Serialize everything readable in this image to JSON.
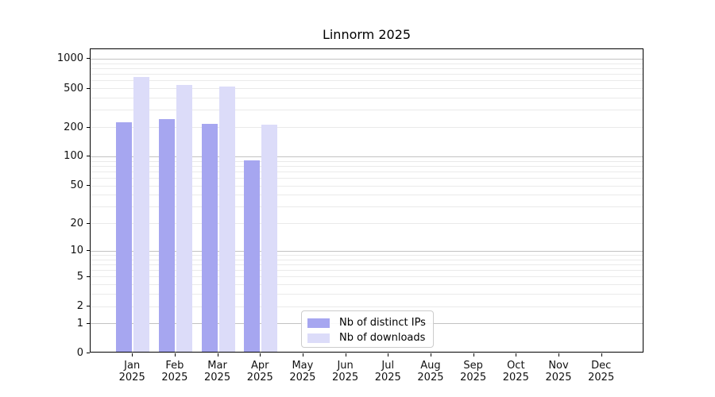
{
  "chart_data": {
    "type": "bar",
    "title": "Linnorm 2025",
    "categories": [
      "Jan",
      "Feb",
      "Mar",
      "Apr",
      "May",
      "Jun",
      "Jul",
      "Aug",
      "Sep",
      "Oct",
      "Nov",
      "Dec"
    ],
    "category_year": "2025",
    "series": [
      {
        "name": "Nb of distinct IPs",
        "color": "#a6a6f0",
        "values": [
          220,
          233,
          210,
          88,
          null,
          null,
          null,
          null,
          null,
          null,
          null,
          null
        ]
      },
      {
        "name": "Nb of downloads",
        "color": "#dcdcf9",
        "values": [
          630,
          530,
          510,
          205,
          null,
          null,
          null,
          null,
          null,
          null,
          null,
          null
        ]
      }
    ],
    "yticks": [
      0,
      1,
      2,
      5,
      10,
      20,
      50,
      100,
      200,
      500,
      1000
    ],
    "ytick_labels": [
      "0",
      "1",
      "2",
      "5",
      "10",
      "20",
      "50",
      "100",
      "200",
      "500",
      "1000"
    ],
    "scale": "log10(value+1)",
    "ylim": [
      0,
      1270
    ],
    "xlabel": "",
    "ylabel": "",
    "grid": "horizontal major and minor, log decades",
    "legend_position": "inside lower center-left"
  },
  "colors": {
    "grid_major": "#c3c3c3",
    "grid_minor": "#eaeaea",
    "spine": "#000000",
    "background": "#ffffff"
  }
}
